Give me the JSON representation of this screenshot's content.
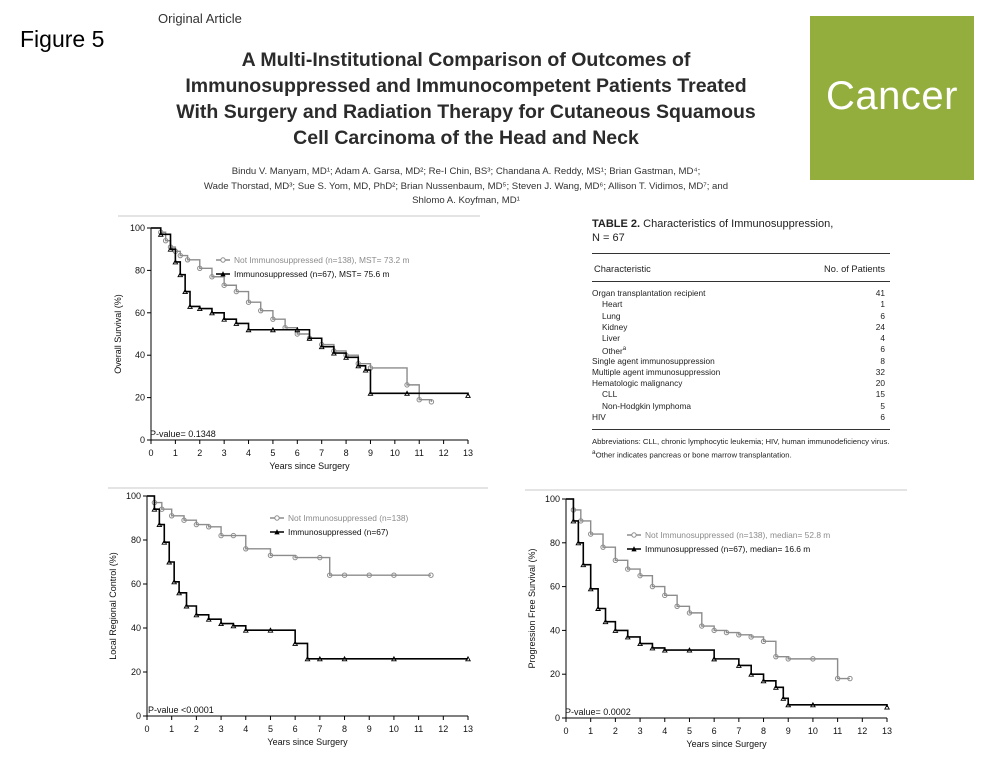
{
  "figure_label": "Figure 5",
  "article_type": "Original Article",
  "title_lines": [
    "A Multi-Institutional Comparison of Outcomes of",
    "Immunosuppressed and Immunocompetent Patients Treated",
    "With Surgery and Radiation Therapy for Cutaneous Squamous",
    "Cell Carcinoma of the Head and Neck"
  ],
  "author_lines": [
    "Bindu V. Manyam, MD¹; Adam A. Garsa, MD²; Re-I Chin, BS³; Chandana A. Reddy, MS¹; Brian Gastman, MD⁴;",
    "Wade Thorstad, MD³; Sue S. Yom, MD, PhD²; Brian Nussenbaum, MD⁵; Steven J. Wang, MD⁶; Allison T. Vidimos, MD⁷; and",
    "Shlomo A. Koyfman, MD¹"
  ],
  "journal_logo": "Cancer",
  "colors": {
    "logo_bg": "#93ae3c",
    "series_not": "#8c8c8c",
    "series_imm": "#000000"
  },
  "table": {
    "caption_label": "TABLE 2.",
    "caption_text": "Characteristics of Immunosuppression,",
    "caption_n": "N = 67",
    "col_headers": [
      "Characteristic",
      "No. of Patients"
    ],
    "rows": [
      {
        "label": "Organ transplantation recipient",
        "value": "41",
        "indent": 0
      },
      {
        "label": "Heart",
        "value": "1",
        "indent": 1
      },
      {
        "label": "Lung",
        "value": "6",
        "indent": 1
      },
      {
        "label": "Kidney",
        "value": "24",
        "indent": 1
      },
      {
        "label": "Liver",
        "value": "4",
        "indent": 1
      },
      {
        "label": "Other",
        "sup": "a",
        "value": "6",
        "indent": 1
      },
      {
        "label": "Single agent immunosuppression",
        "value": "8",
        "indent": 0
      },
      {
        "label": "Multiple agent immunosuppression",
        "value": "32",
        "indent": 0
      },
      {
        "label": "Hematologic malignancy",
        "value": "20",
        "indent": 0
      },
      {
        "label": "CLL",
        "value": "15",
        "indent": 1
      },
      {
        "label": "Non-Hodgkin lymphoma",
        "value": "5",
        "indent": 1
      },
      {
        "label": "HIV",
        "value": "6",
        "indent": 0
      }
    ],
    "abbreviations": "Abbreviations: CLL, chronic lymphocytic leukemia; HIV, human immunodeficiency virus.",
    "footnote_mark": "a",
    "footnote": "Other indicates pancreas or bone marrow transplantation."
  },
  "chart_data": [
    {
      "type": "line",
      "ylabel": "Overall Survival (%)",
      "xlabel": "Years since Surgery",
      "xlim": [
        0,
        13
      ],
      "ylim": [
        0,
        100
      ],
      "xticks": [
        0,
        1,
        2,
        3,
        4,
        5,
        6,
        7,
        8,
        9,
        10,
        11,
        12,
        13
      ],
      "yticks": [
        0,
        20,
        40,
        60,
        80,
        100
      ],
      "pvalue": "P-value= 0.1348",
      "series": [
        {
          "name": "Not Immunosuppressed (n=138), MST= 73.2 m",
          "x": [
            0,
            0.4,
            0.6,
            0.8,
            1.0,
            1.2,
            1.5,
            2.0,
            2.5,
            3.0,
            3.5,
            4.0,
            4.5,
            5.0,
            5.5,
            6.0,
            6.5,
            7.0,
            7.5,
            8.0,
            8.5,
            9.0,
            10.5,
            11.0,
            11.5
          ],
          "y": [
            100,
            98,
            94,
            91,
            89,
            87,
            85,
            81,
            77,
            73,
            70,
            65,
            61,
            57,
            53,
            50,
            48,
            45,
            42,
            40,
            36,
            34,
            26,
            19,
            18
          ]
        },
        {
          "name": "Immunosuppressed (n=67), MST= 75.6 m",
          "x": [
            0,
            0.4,
            0.8,
            1.0,
            1.2,
            1.4,
            1.6,
            2.0,
            2.5,
            3.0,
            3.5,
            4.0,
            5.0,
            6.0,
            6.5,
            7.0,
            7.5,
            8.0,
            8.5,
            8.8,
            9.0,
            10.5,
            13.0
          ],
          "y": [
            100,
            97,
            90,
            84,
            78,
            70,
            63,
            62,
            60,
            57,
            55,
            52,
            52,
            52,
            48,
            44,
            41,
            39,
            35,
            33,
            22,
            22,
            21
          ]
        }
      ]
    },
    {
      "type": "line",
      "ylabel": "Local Regional Control (%)",
      "xlabel": "Years since Surgery",
      "xlim": [
        0,
        13
      ],
      "ylim": [
        0,
        100
      ],
      "xticks": [
        0,
        1,
        2,
        3,
        4,
        5,
        6,
        7,
        8,
        9,
        10,
        11,
        12,
        13
      ],
      "yticks": [
        0,
        20,
        40,
        60,
        80,
        100
      ],
      "pvalue": "P-value <0.0001",
      "series": [
        {
          "name": "Not Immunosuppressed (n=138)",
          "x": [
            0,
            0.3,
            0.6,
            1.0,
            1.5,
            2.0,
            2.5,
            3.0,
            3.5,
            4.0,
            5.0,
            6.0,
            7.0,
            7.4,
            8.0,
            9.0,
            10.0,
            11.5
          ],
          "y": [
            100,
            97,
            94,
            91,
            89,
            87,
            86,
            82,
            82,
            76,
            73,
            72,
            72,
            64,
            64,
            64,
            64,
            64
          ],
          "step": true
        },
        {
          "name": "Immunosuppressed (n=67)",
          "x": [
            0,
            0.3,
            0.5,
            0.7,
            0.9,
            1.1,
            1.3,
            1.6,
            2.0,
            2.5,
            3.0,
            3.5,
            4.0,
            5.0,
            6.0,
            6.5,
            7.0,
            8.0,
            10.0,
            13.0
          ],
          "y": [
            100,
            94,
            87,
            79,
            70,
            61,
            56,
            50,
            46,
            44,
            42,
            41,
            39,
            39,
            33,
            26,
            26,
            26,
            26,
            26
          ],
          "step": true
        }
      ]
    },
    {
      "type": "line",
      "ylabel": "Progression Free Survival (%)",
      "xlabel": "Years since Surgery",
      "xlim": [
        0,
        13
      ],
      "ylim": [
        0,
        100
      ],
      "xticks": [
        0,
        1,
        2,
        3,
        4,
        5,
        6,
        7,
        8,
        9,
        10,
        11,
        12,
        13
      ],
      "yticks": [
        0,
        20,
        40,
        60,
        80,
        100
      ],
      "pvalue": "P-value= 0.0002",
      "series": [
        {
          "name": "Not Immunosuppressed (n=138), median= 52.8 m",
          "x": [
            0,
            0.3,
            0.6,
            1.0,
            1.5,
            2.0,
            2.5,
            3.0,
            3.5,
            4.0,
            4.5,
            5.0,
            5.5,
            6.0,
            6.5,
            7.0,
            7.5,
            8.0,
            8.5,
            9.0,
            10.0,
            11.0,
            11.5
          ],
          "y": [
            100,
            95,
            90,
            84,
            78,
            72,
            68,
            65,
            60,
            56,
            51,
            48,
            42,
            40,
            39,
            38,
            37,
            35,
            28,
            27,
            27,
            18,
            18
          ],
          "step": true
        },
        {
          "name": "Immunosuppressed (n=67), median= 16.6 m",
          "x": [
            0,
            0.3,
            0.5,
            0.7,
            1.0,
            1.3,
            1.6,
            2.0,
            2.5,
            3.0,
            3.5,
            4.0,
            5.0,
            6.0,
            7.0,
            7.5,
            8.0,
            8.5,
            8.8,
            9.0,
            10.0,
            13.0
          ],
          "y": [
            100,
            90,
            80,
            70,
            59,
            50,
            44,
            40,
            37,
            34,
            32,
            31,
            31,
            27,
            24,
            20,
            17,
            14,
            9,
            6,
            6,
            5
          ],
          "step": true
        }
      ]
    }
  ]
}
